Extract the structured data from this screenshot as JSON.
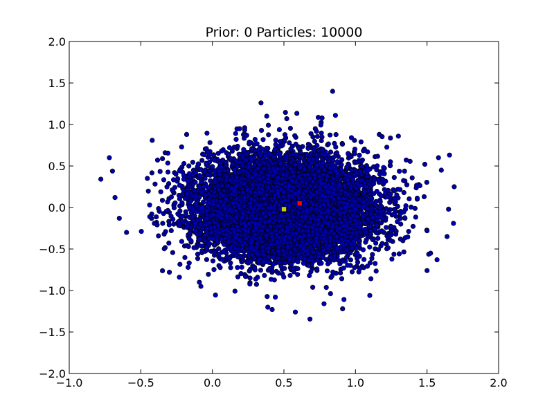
{
  "figure": {
    "title": "Prior: 0 Particles: 10000"
  },
  "chart_data": {
    "type": "scatter",
    "title": "Prior: 0 Particles: 10000",
    "xlabel": "",
    "ylabel": "",
    "xlim": [
      -1.0,
      2.0
    ],
    "ylim": [
      -2.0,
      2.0
    ],
    "xticks": [
      -1.0,
      -0.5,
      0.0,
      0.5,
      1.0,
      1.5,
      2.0
    ],
    "yticks": [
      -2.0,
      -1.5,
      -1.0,
      -0.5,
      0.0,
      0.5,
      1.0,
      1.5,
      2.0
    ],
    "xtick_labels": [
      "−1.0",
      "−0.5",
      "0.0",
      "0.5",
      "1.0",
      "1.5",
      "2.0"
    ],
    "ytick_labels": [
      "−2.0",
      "−1.5",
      "−1.0",
      "−0.5",
      "0.0",
      "0.5",
      "1.0",
      "1.5",
      "2.0"
    ],
    "grid": false,
    "series": [
      {
        "marker": "circle",
        "color": "#0000aa",
        "count": 10000,
        "center": [
          0.5,
          0.0
        ],
        "std": [
          0.3,
          0.3
        ],
        "outliers": [
          [
            -0.72,
            0.6
          ],
          [
            -0.68,
            0.12
          ],
          [
            -0.65,
            -0.13
          ],
          [
            -0.6,
            -0.3
          ],
          [
            0.34,
            1.26
          ],
          [
            0.38,
            1.1
          ],
          [
            0.52,
            1.07
          ],
          [
            0.84,
            1.4
          ],
          [
            0.86,
            1.11
          ],
          [
            0.58,
            -1.26
          ],
          [
            0.78,
            -1.16
          ],
          [
            0.91,
            -1.22
          ],
          [
            1.1,
            -1.06
          ],
          [
            1.57,
            -0.63
          ],
          [
            1.64,
            -0.35
          ],
          [
            1.69,
            0.25
          ],
          [
            1.6,
            0.45
          ],
          [
            1.58,
            0.6
          ],
          [
            1.5,
            -0.76
          ],
          [
            1.65,
            -0.02
          ],
          [
            -0.23,
            -0.84
          ],
          [
            -0.08,
            -0.95
          ],
          [
            0.44,
            -1.08
          ],
          [
            1.3,
            0.86
          ],
          [
            -0.33,
            0.66
          ],
          [
            -0.18,
            0.88
          ],
          [
            0.12,
            0.72
          ],
          [
            0.24,
            0.87
          ],
          [
            1.5,
            -0.28
          ],
          [
            1.48,
            0.13
          ]
        ]
      },
      {
        "marker": "square",
        "color": "#cccc00",
        "points": [
          [
            0.5,
            -0.02
          ]
        ]
      },
      {
        "marker": "square",
        "color": "#ff0000",
        "points": [
          [
            0.61,
            0.05
          ]
        ]
      }
    ]
  }
}
